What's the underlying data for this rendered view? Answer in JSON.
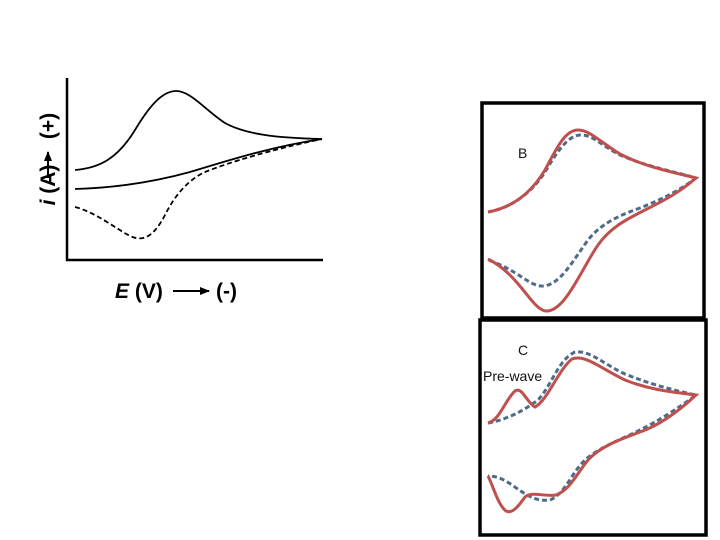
{
  "panel_a": {
    "y_axis_label_italic": "i",
    "y_axis_label_rest": " (A)",
    "y_axis_direction": "(+)",
    "x_axis_label_italic": "E",
    "x_axis_label_rest": " (V)",
    "x_axis_direction": "(-)"
  },
  "panel_b": {
    "label": "B"
  },
  "panel_c": {
    "label": "C",
    "annotation": "Pre-wave"
  },
  "colors": {
    "red_trace": "#c0504d",
    "blue_dashed_trace": "#4f6b8a",
    "black": "#000000"
  }
}
